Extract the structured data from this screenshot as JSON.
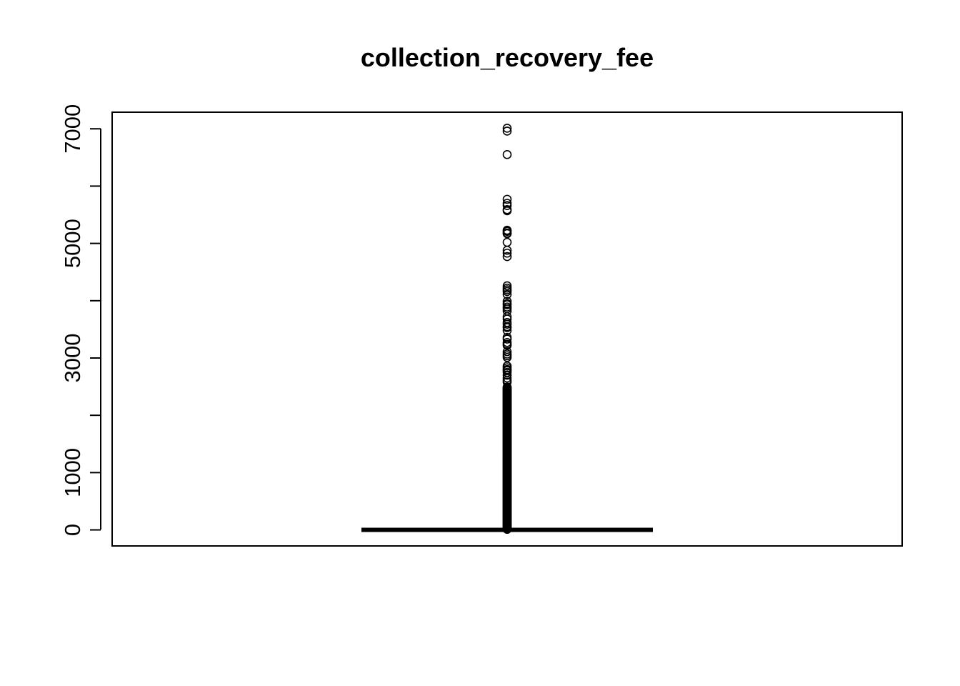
{
  "chart_data": {
    "type": "boxplot",
    "title": "collection_recovery_fee",
    "xlabel": "",
    "ylabel": "",
    "ylim": [
      -280,
      7290
    ],
    "yticks": [
      0,
      1000,
      2000,
      3000,
      4000,
      5000,
      6000,
      7000
    ],
    "ytick_labels": [
      "0",
      "1000",
      "",
      "3000",
      "",
      "5000",
      "",
      "7000"
    ],
    "grid": false,
    "legend": "none",
    "box": {
      "min": 0,
      "q1": 0,
      "median": 0,
      "q3": 0,
      "max": 0
    },
    "outliers_dense_range": [
      10,
      2500
    ],
    "outliers": [
      7010,
      6960,
      6550,
      5770,
      5700,
      5660,
      5590,
      5570,
      5230,
      5210,
      5180,
      5170,
      5020,
      4880,
      4830,
      4770,
      4260,
      4220,
      4190,
      4160,
      4110,
      3990,
      3950,
      3930,
      3890,
      3860,
      3820,
      3720,
      3680,
      3620,
      3590,
      3550,
      3530,
      3480,
      3360,
      3330,
      3270,
      3240,
      3220,
      3110,
      3070,
      3040,
      3010,
      2860,
      2830,
      2800,
      2780,
      2750,
      2700,
      2650,
      2610,
      2580
    ]
  }
}
